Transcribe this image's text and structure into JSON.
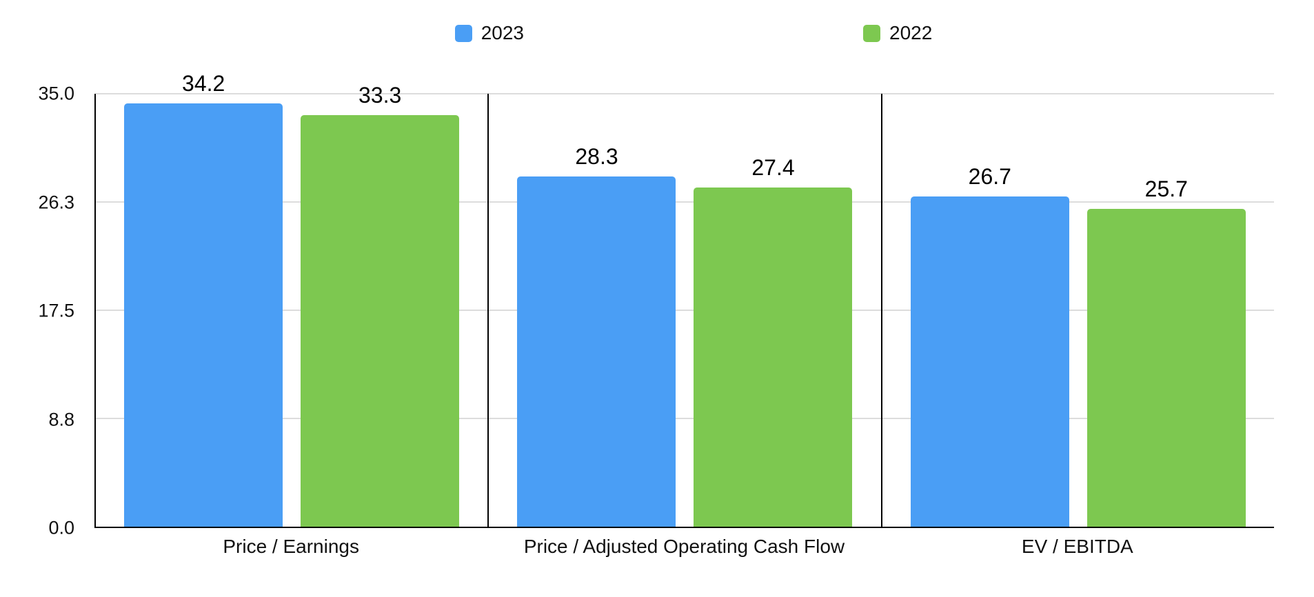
{
  "chart_data": {
    "type": "bar",
    "categories": [
      "Price / Earnings",
      "Price / Adjusted Operating Cash Flow",
      "EV / EBITDA"
    ],
    "series": [
      {
        "name": "2023",
        "color": "#4A9EF5",
        "values": [
          34.2,
          28.3,
          26.7
        ]
      },
      {
        "name": "2022",
        "color": "#7DC850",
        "values": [
          33.3,
          27.4,
          25.7
        ]
      }
    ],
    "ylim": [
      0,
      35
    ],
    "y_ticks": [
      {
        "value": 35,
        "label": "35.0"
      },
      {
        "value": 26.25,
        "label": "26.3"
      },
      {
        "value": 17.5,
        "label": "17.5"
      },
      {
        "value": 8.75,
        "label": "8.8"
      },
      {
        "value": 0,
        "label": "0.0"
      }
    ],
    "grid": "horizontal",
    "legend_position": "top",
    "value_labels": true,
    "colors": {
      "axis": "#000000",
      "gridline": "#dcdcdc",
      "text": "#111111",
      "background": "#ffffff"
    }
  }
}
